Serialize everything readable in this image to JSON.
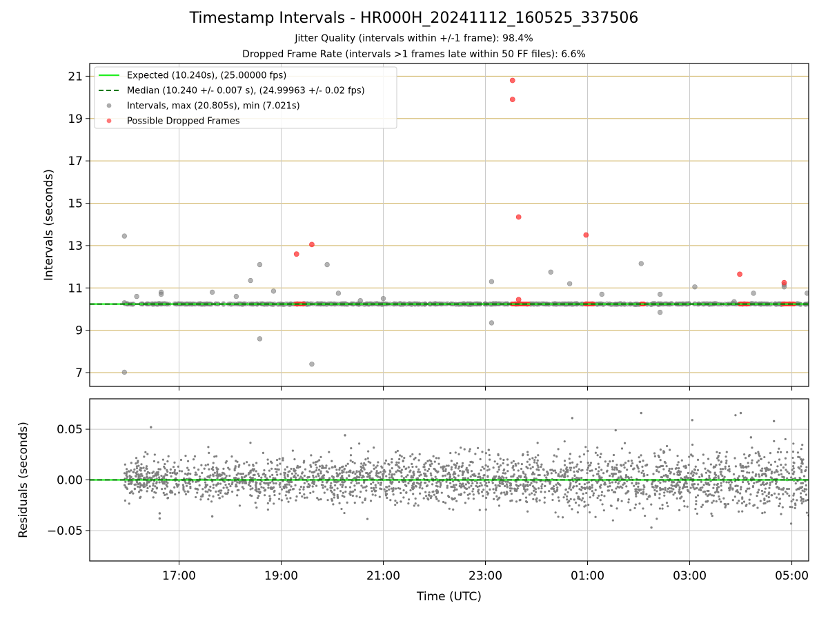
{
  "title": "Timestamp Intervals - HR000H_20241112_160525_337506",
  "subtitle_1": "Jitter Quality (intervals within +/-1 frame): 98.4%",
  "subtitle_2": "Dropped Frame Rate (intervals >1 frames late within 50 FF files): 6.6%",
  "colors": {
    "expected": "#22ee22",
    "median": "#007700",
    "intervals": "#808080",
    "dropped": "#ff3333",
    "hgrid_top": "#d2b76a",
    "grid": "#c8c8c8"
  },
  "chart_data": [
    {
      "type": "scatter",
      "panel": "intervals",
      "title": "",
      "ylabel": "Intervals (seconds)",
      "xlabel": "",
      "x_unit": "hours since 00:00 UTC (day 1)",
      "xlim": [
        15.25,
        29.33
      ],
      "ylim": [
        6.35,
        21.6
      ],
      "yticks": [
        7,
        9,
        11,
        13,
        15,
        17,
        19,
        21
      ],
      "ytick_labels": [
        "7",
        "9",
        "11",
        "13",
        "15",
        "17",
        "19",
        "21"
      ],
      "xticks": [
        17,
        19,
        21,
        23,
        25,
        27,
        29
      ],
      "xtick_labels": [
        "17:00",
        "19:00",
        "21:00",
        "23:00",
        "01:00",
        "03:00",
        "05:00"
      ],
      "grid": true,
      "legend_position": "top-left",
      "legend": [
        {
          "label": "Expected (10.240s), (25.00000 fps)",
          "type": "line-solid",
          "color_key": "expected"
        },
        {
          "label": "Median (10.240 +/- 0.007 s), (24.99963 +/- 0.02 fps)",
          "type": "line-dashed",
          "color_key": "median"
        },
        {
          "label": "Intervals, max (20.805s), min (7.021s)",
          "type": "marker",
          "color_key": "intervals"
        },
        {
          "label": "Possible Dropped Frames",
          "type": "marker",
          "color_key": "dropped"
        }
      ],
      "expected": 10.24,
      "median": 10.24,
      "baseline_x_range": [
        15.93,
        29.33
      ],
      "intervals_outliers": [
        {
          "x": 15.93,
          "y": 7.02
        },
        {
          "x": 15.93,
          "y": 13.45
        },
        {
          "x": 15.93,
          "y": 10.3
        },
        {
          "x": 16.17,
          "y": 10.6
        },
        {
          "x": 16.65,
          "y": 10.8
        },
        {
          "x": 16.65,
          "y": 10.7
        },
        {
          "x": 17.65,
          "y": 10.8
        },
        {
          "x": 18.12,
          "y": 10.6
        },
        {
          "x": 18.4,
          "y": 11.35
        },
        {
          "x": 18.58,
          "y": 12.1
        },
        {
          "x": 18.58,
          "y": 8.6
        },
        {
          "x": 18.85,
          "y": 10.85
        },
        {
          "x": 19.6,
          "y": 7.4
        },
        {
          "x": 19.9,
          "y": 12.1
        },
        {
          "x": 20.12,
          "y": 10.75
        },
        {
          "x": 20.55,
          "y": 10.4
        },
        {
          "x": 21.0,
          "y": 10.5
        },
        {
          "x": 23.12,
          "y": 11.3
        },
        {
          "x": 23.12,
          "y": 9.35
        },
        {
          "x": 24.28,
          "y": 11.75
        },
        {
          "x": 24.65,
          "y": 11.2
        },
        {
          "x": 26.05,
          "y": 12.15
        },
        {
          "x": 26.42,
          "y": 10.7
        },
        {
          "x": 26.42,
          "y": 9.85
        },
        {
          "x": 25.28,
          "y": 10.7
        },
        {
          "x": 27.1,
          "y": 11.05
        },
        {
          "x": 27.87,
          "y": 10.35
        },
        {
          "x": 28.25,
          "y": 10.75
        },
        {
          "x": 28.85,
          "y": 11.15
        },
        {
          "x": 28.85,
          "y": 11.05
        },
        {
          "x": 29.3,
          "y": 10.75
        }
      ],
      "dropped_frames": [
        {
          "x": 19.3,
          "y": 12.6
        },
        {
          "x": 19.6,
          "y": 13.05
        },
        {
          "x": 23.53,
          "y": 20.8
        },
        {
          "x": 23.53,
          "y": 19.9
        },
        {
          "x": 23.65,
          "y": 14.35
        },
        {
          "x": 23.65,
          "y": 10.45
        },
        {
          "x": 24.97,
          "y": 13.5
        },
        {
          "x": 27.98,
          "y": 11.65
        },
        {
          "x": 28.85,
          "y": 11.25
        }
      ],
      "dropped_clusters": [
        {
          "x_start": 19.28,
          "x_end": 19.45,
          "y": 10.24
        },
        {
          "x_start": 23.52,
          "x_end": 23.85,
          "y": 10.24
        },
        {
          "x_start": 24.95,
          "x_end": 25.12,
          "y": 10.24
        },
        {
          "x_start": 26.05,
          "x_end": 26.12,
          "y": 10.24
        },
        {
          "x_start": 27.98,
          "x_end": 28.15,
          "y": 10.24
        },
        {
          "x_start": 28.82,
          "x_end": 29.05,
          "y": 10.24
        }
      ]
    },
    {
      "type": "scatter",
      "panel": "residuals",
      "title": "",
      "ylabel": "Residuals (seconds)",
      "xlabel": "Time (UTC)",
      "xlim": [
        15.25,
        29.33
      ],
      "ylim": [
        -0.08,
        0.08
      ],
      "yticks": [
        -0.05,
        0.0,
        0.05
      ],
      "ytick_labels": [
        "−0.05",
        "0.00",
        "0.05"
      ],
      "xticks": [
        17,
        19,
        21,
        23,
        25,
        27,
        29
      ],
      "xtick_labels": [
        "17:00",
        "19:00",
        "21:00",
        "23:00",
        "01:00",
        "03:00",
        "05:00"
      ],
      "grid": true,
      "zero_line": 0.0,
      "residual_x_range": [
        15.93,
        29.33
      ],
      "residual_spread_std": 0.012,
      "residual_points_count": 2600,
      "residual_notable": [
        {
          "x": 16.45,
          "y": 0.052
        },
        {
          "x": 16.62,
          "y": -0.038
        },
        {
          "x": 16.62,
          "y": -0.033
        },
        {
          "x": 24.7,
          "y": 0.061
        },
        {
          "x": 26.05,
          "y": 0.066
        },
        {
          "x": 27.05,
          "y": 0.059
        },
        {
          "x": 28.0,
          "y": 0.066
        },
        {
          "x": 28.2,
          "y": 0.042
        },
        {
          "x": 28.65,
          "y": 0.058
        },
        {
          "x": 26.25,
          "y": -0.047
        },
        {
          "x": 29.33,
          "y": -0.035
        },
        {
          "x": 17.65,
          "y": -0.036
        },
        {
          "x": 20.25,
          "y": 0.044
        },
        {
          "x": 25.55,
          "y": 0.049
        }
      ]
    }
  ]
}
